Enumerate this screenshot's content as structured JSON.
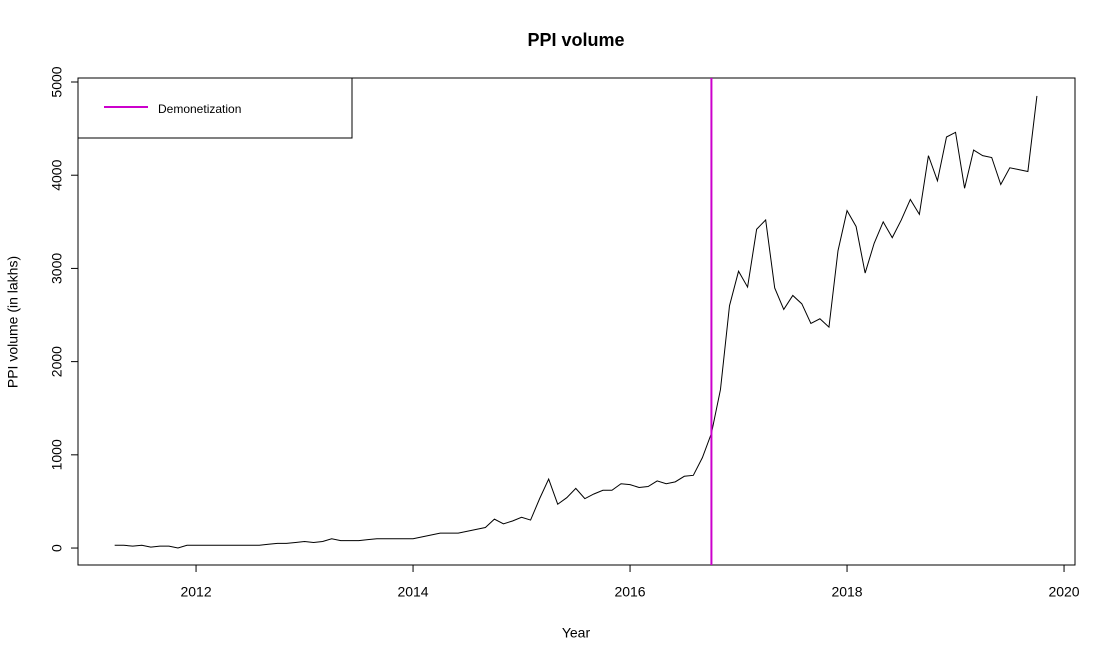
{
  "chart_data": {
    "type": "line",
    "title": "PPI volume",
    "x_label": "Year",
    "y_label": "PPI volume (in lakhs)",
    "x": [
      2011.25,
      2011.3333,
      2011.4167,
      2011.5,
      2011.5833,
      2011.6667,
      2011.75,
      2011.8333,
      2011.9167,
      2012,
      2012.0833,
      2012.1667,
      2012.25,
      2012.3333,
      2012.4167,
      2012.5,
      2012.5833,
      2012.6667,
      2012.75,
      2012.8333,
      2012.9167,
      2013,
      2013.0833,
      2013.1667,
      2013.25,
      2013.3333,
      2013.4167,
      2013.5,
      2013.5833,
      2013.6667,
      2013.75,
      2013.8333,
      2013.9167,
      2014,
      2014.0833,
      2014.1667,
      2014.25,
      2014.3333,
      2014.4167,
      2014.5,
      2014.5833,
      2014.6667,
      2014.75,
      2014.8333,
      2014.9167,
      2015,
      2015.0833,
      2015.1667,
      2015.25,
      2015.3333,
      2015.4167,
      2015.5,
      2015.5833,
      2015.6667,
      2015.75,
      2015.8333,
      2015.9167,
      2016,
      2016.0833,
      2016.1667,
      2016.25,
      2016.3333,
      2016.4167,
      2016.5,
      2016.5833,
      2016.6667,
      2016.75,
      2016.8333,
      2016.9167,
      2017,
      2017.0833,
      2017.1667,
      2017.25,
      2017.3333,
      2017.4167,
      2017.5,
      2017.5833,
      2017.6667,
      2017.75,
      2017.8333,
      2017.9167,
      2018,
      2018.0833,
      2018.1667,
      2018.25,
      2018.3333,
      2018.4167,
      2018.5,
      2018.5833,
      2018.6667,
      2018.75,
      2018.8333,
      2018.9167,
      2019,
      2019.0833,
      2019.1667,
      2019.25,
      2019.3333,
      2019.4167,
      2019.5,
      2019.5833,
      2019.6667,
      2019.75
    ],
    "series": [
      {
        "color": "#000000",
        "values": [
          30,
          30,
          20,
          30,
          10,
          20,
          20,
          0,
          30,
          30,
          30,
          30,
          30,
          30,
          30,
          30,
          30,
          40,
          50,
          50,
          60,
          70,
          60,
          70,
          100,
          80,
          80,
          80,
          90,
          100,
          100,
          100,
          100,
          100,
          120,
          140,
          160,
          160,
          160,
          180,
          200,
          220,
          310,
          260,
          290,
          330,
          300,
          530,
          740,
          470,
          540,
          640,
          530,
          580,
          620,
          620,
          690,
          680,
          650,
          660,
          720,
          690,
          710,
          770,
          780,
          970,
          1230,
          1700,
          2600,
          2970,
          2800,
          3420,
          3520,
          2790,
          2560,
          2710,
          2620,
          2410,
          2460,
          2370,
          3190,
          3620,
          3450,
          2950,
          3270,
          3500,
          3330,
          3520,
          3740,
          3580,
          4210,
          3940,
          4410,
          4460,
          3860,
          4270,
          4210,
          4190,
          3900,
          4080,
          4060,
          4040,
          4850
        ]
      }
    ],
    "vlines": [
      {
        "name": "Demonetization",
        "color": "#cc00cc",
        "x": 2016.75
      }
    ],
    "xlim": [
      2010.912,
      2020.101
    ],
    "ylim": [
      -182,
      5043
    ],
    "xticks": [
      2012,
      2014,
      2016,
      2018,
      2020
    ],
    "yticks": [
      0,
      1000,
      2000,
      3000,
      4000,
      5000
    ],
    "legend_position": "top-left"
  }
}
